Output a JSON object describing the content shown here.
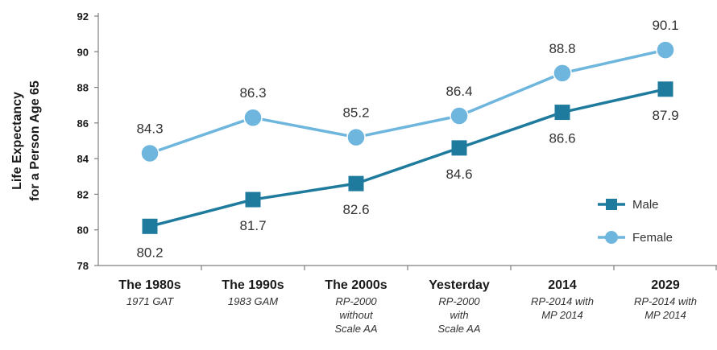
{
  "chart_data": {
    "type": "line",
    "title": "",
    "ylabel": [
      "Life Expectancy",
      "for a Person Age 65"
    ],
    "xlabel": "",
    "ylim": [
      78,
      92
    ],
    "yticks": [
      78,
      80,
      82,
      84,
      86,
      88,
      90,
      92
    ],
    "grid": false,
    "legend_position": "bottom-right",
    "categories": [
      {
        "label": "The 1980s",
        "sub": [
          "1971 GAT"
        ]
      },
      {
        "label": "The 1990s",
        "sub": [
          "1983 GAM"
        ]
      },
      {
        "label": "The 2000s",
        "sub": [
          "RP-2000",
          "without",
          "Scale AA"
        ]
      },
      {
        "label": "Yesterday",
        "sub": [
          "RP-2000",
          "with",
          "Scale AA"
        ]
      },
      {
        "label": "2014",
        "sub": [
          "RP-2014 with",
          "MP 2014"
        ]
      },
      {
        "label": "2029",
        "sub": [
          "RP-2014 with",
          "MP 2014"
        ]
      }
    ],
    "series": [
      {
        "name": "Male",
        "marker": "square",
        "color": "#1f7b9e",
        "values": [
          80.2,
          81.7,
          82.6,
          84.6,
          86.6,
          87.9
        ],
        "label_position": "below"
      },
      {
        "name": "Female",
        "marker": "circle",
        "color": "#6eb6dd",
        "values": [
          84.3,
          86.3,
          85.2,
          86.4,
          88.8,
          90.1
        ],
        "label_position": "above"
      }
    ],
    "axis_color": "#7f7f7f"
  }
}
